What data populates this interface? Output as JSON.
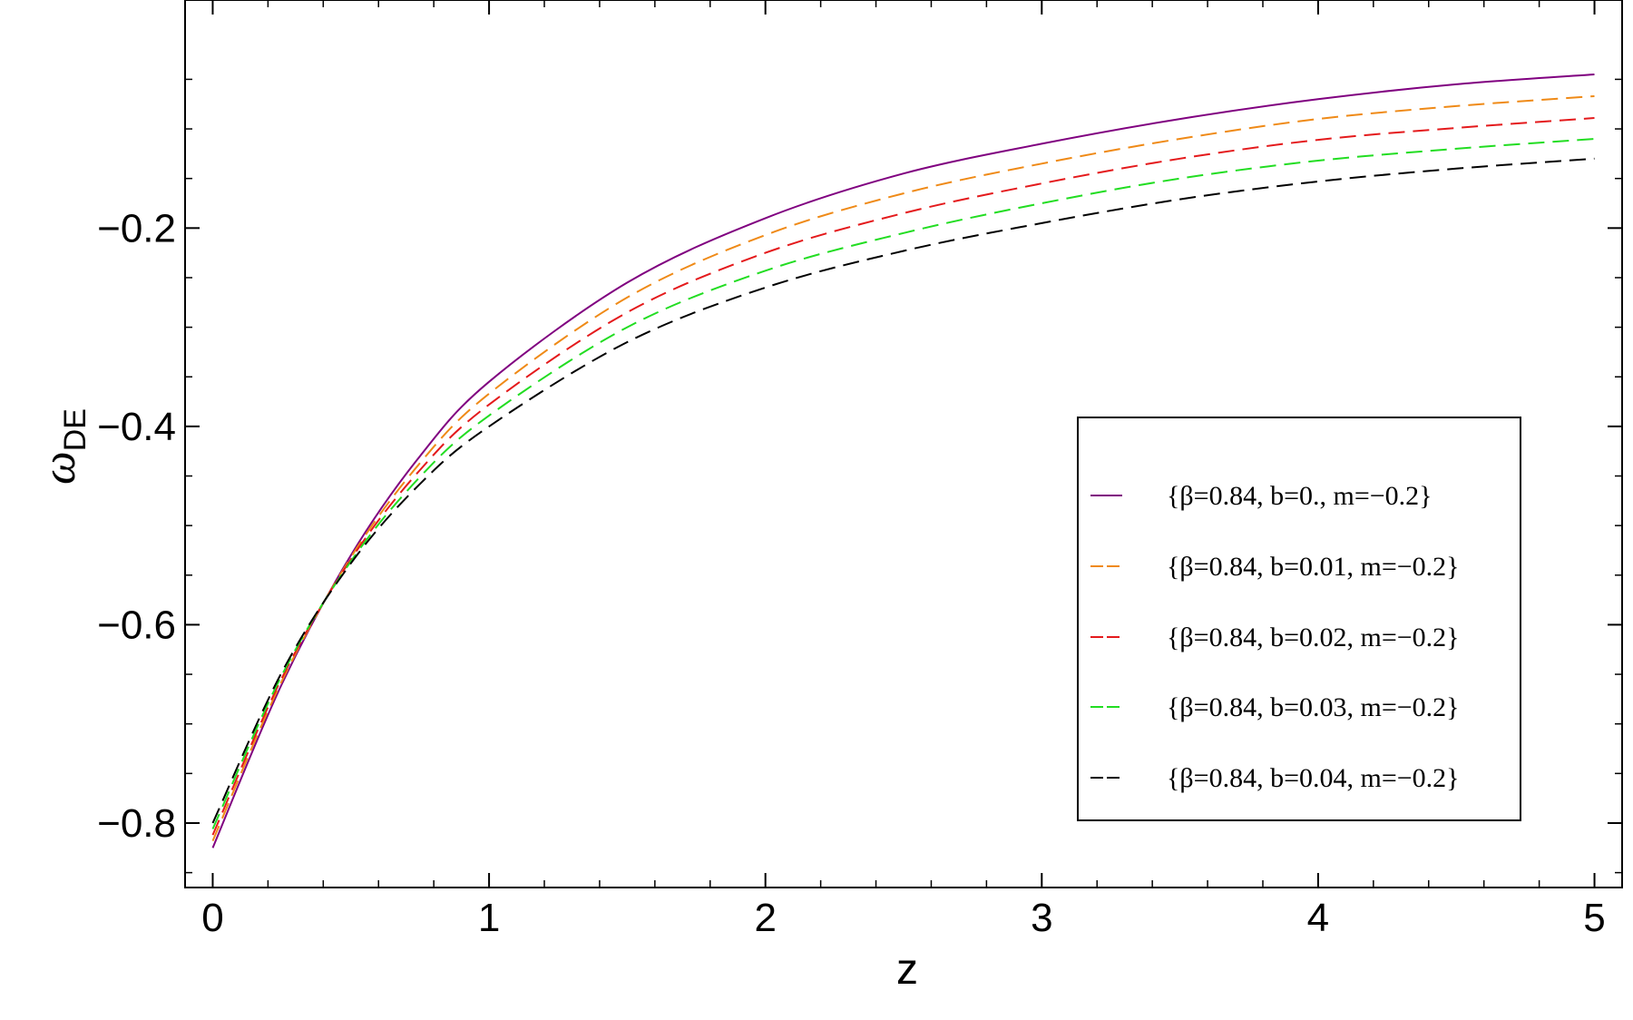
{
  "chart_data": {
    "type": "line",
    "xlabel": "z",
    "ylabel": "ω",
    "ylabel_subscript": "DE",
    "xlim": [
      -0.1,
      5.1
    ],
    "ylim": [
      -0.865,
      0.03
    ],
    "x_ticks": [
      0,
      1,
      2,
      3,
      4,
      5
    ],
    "x_tick_labels": [
      "0",
      "1",
      "2",
      "3",
      "4",
      "5"
    ],
    "y_ticks": [
      -0.8,
      -0.6,
      -0.4,
      -0.2
    ],
    "y_tick_labels": [
      "−0.8",
      "−0.6",
      "−0.4",
      "−0.2"
    ],
    "legend_position": "right-middle",
    "x": [
      0,
      0.25,
      0.5,
      0.75,
      1,
      1.5,
      2,
      2.5,
      3,
      3.5,
      4,
      4.5,
      5
    ],
    "series": [
      {
        "name": "{β=0.84, b=0., m=−0.2}",
        "color": "#800080",
        "dash": "solid",
        "values": [
          -0.825,
          -0.66,
          -0.53,
          -0.43,
          -0.355,
          -0.255,
          -0.19,
          -0.145,
          -0.115,
          -0.09,
          -0.07,
          -0.055,
          -0.045
        ]
      },
      {
        "name": "{β=0.84, b=0.01, m=−0.2}",
        "color": "#ef8a17",
        "dash": "dashed",
        "values": [
          -0.818,
          -0.657,
          -0.532,
          -0.437,
          -0.367,
          -0.27,
          -0.207,
          -0.165,
          -0.135,
          -0.11,
          -0.09,
          -0.077,
          -0.067
        ]
      },
      {
        "name": "{β=0.84, b=0.02, m=−0.2}",
        "color": "#e41a1c",
        "dash": "dashed",
        "values": [
          -0.812,
          -0.654,
          -0.534,
          -0.444,
          -0.378,
          -0.285,
          -0.225,
          -0.185,
          -0.155,
          -0.13,
          -0.111,
          -0.099,
          -0.089
        ]
      },
      {
        "name": "{β=0.84, b=0.03, m=−0.2}",
        "color": "#22dd22",
        "dash": "dashed",
        "values": [
          -0.806,
          -0.651,
          -0.536,
          -0.451,
          -0.389,
          -0.3,
          -0.243,
          -0.205,
          -0.175,
          -0.15,
          -0.132,
          -0.12,
          -0.11
        ]
      },
      {
        "name": "{β=0.84, b=0.04, m=−0.2}",
        "color": "#000000",
        "dash": "dashed",
        "values": [
          -0.8,
          -0.648,
          -0.538,
          -0.458,
          -0.4,
          -0.315,
          -0.26,
          -0.223,
          -0.195,
          -0.171,
          -0.153,
          -0.14,
          -0.13
        ]
      }
    ]
  }
}
